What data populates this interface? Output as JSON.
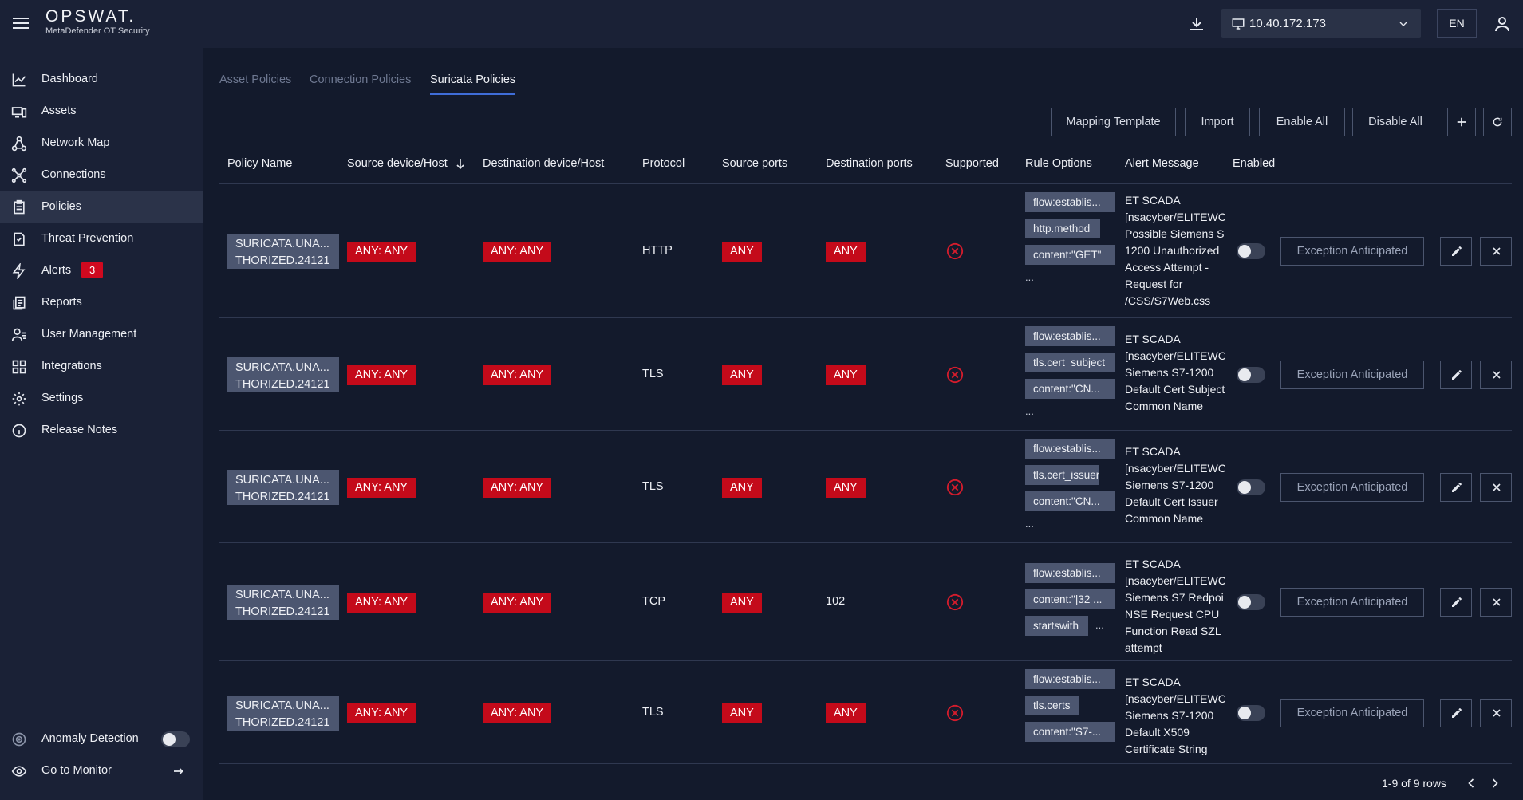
{
  "app": {
    "brand": "OPSWAT.",
    "product": "MetaDefender OT Security",
    "ip_address": "10.40.172.173",
    "language": "EN"
  },
  "sidebar": {
    "items": [
      {
        "label": "Dashboard",
        "icon": "chart-line-icon"
      },
      {
        "label": "Assets",
        "icon": "devices-icon"
      },
      {
        "label": "Network Map",
        "icon": "network-map-icon"
      },
      {
        "label": "Connections",
        "icon": "connections-icon"
      },
      {
        "label": "Policies",
        "icon": "clipboard-icon",
        "active": true
      },
      {
        "label": "Threat Prevention",
        "icon": "document-shield-icon"
      },
      {
        "label": "Alerts",
        "icon": "bolt-icon",
        "badge": "3"
      },
      {
        "label": "Reports",
        "icon": "reports-icon"
      },
      {
        "label": "User Management",
        "icon": "users-icon"
      },
      {
        "label": "Integrations",
        "icon": "grid-icon"
      },
      {
        "label": "Settings",
        "icon": "gear-icon"
      },
      {
        "label": "Release Notes",
        "icon": "info-icon"
      }
    ],
    "anomaly_detection": "Anomaly Detection",
    "go_to_monitor": "Go to Monitor"
  },
  "tabs": [
    "Asset Policies",
    "Connection Policies",
    "Suricata Policies"
  ],
  "actions": {
    "mapping_template": "Mapping Template",
    "import": "Import",
    "enable_all": "Enable All",
    "disable_all": "Disable All"
  },
  "columns": [
    "Policy Name",
    "Source device/Host",
    "Destination device/Host",
    "Protocol",
    "Source ports",
    "Destination ports",
    "Supported",
    "Rule Options",
    "Alert Message",
    "Enabled"
  ],
  "rows": [
    {
      "name": "SURICATA.UNA...\nTHORIZED.24121",
      "source": "ANY: ANY",
      "destination": "ANY: ANY",
      "protocol": "HTTP",
      "source_ports": "ANY",
      "destination_ports": "ANY",
      "options": [
        "flow:establis...",
        "http.method",
        "content:\"GET\""
      ],
      "more": "...",
      "alert": "ET SCADA\n[nsacyber/ELITEWC\nPossible Siemens S\n1200 Unauthorized\nAccess Attempt -\nRequest for\n/CSS/S7Web.css",
      "enabled": false,
      "exception": "Exception Anticipated"
    },
    {
      "name": "SURICATA.UNA...\nTHORIZED.24121",
      "source": "ANY: ANY",
      "destination": "ANY: ANY",
      "protocol": "TLS",
      "source_ports": "ANY",
      "destination_ports": "ANY",
      "options": [
        "flow:establis...",
        "tls.cert_subject",
        "content:\"CN..."
      ],
      "more": "...",
      "alert": "ET SCADA\n[nsacyber/ELITEWC\nSiemens S7-1200\nDefault Cert Subject\nCommon Name",
      "enabled": false,
      "exception": "Exception Anticipated"
    },
    {
      "name": "SURICATA.UNA...\nTHORIZED.24121",
      "source": "ANY: ANY",
      "destination": "ANY: ANY",
      "protocol": "TLS",
      "source_ports": "ANY",
      "destination_ports": "ANY",
      "options": [
        "flow:establis...",
        "tls.cert_issuer",
        "content:\"CN..."
      ],
      "more": "...",
      "alert": "ET SCADA\n[nsacyber/ELITEWC\nSiemens S7-1200\nDefault Cert Issuer\nCommon Name",
      "enabled": false,
      "exception": "Exception Anticipated"
    },
    {
      "name": "SURICATA.UNA...\nTHORIZED.24121",
      "source": "ANY: ANY",
      "destination": "ANY: ANY",
      "protocol": "TCP",
      "source_ports": "ANY",
      "destination_ports": "102",
      "options": [
        "flow:establis...",
        "content:\"|32 ...",
        "startswith"
      ],
      "more": "...",
      "alert": "ET SCADA\n[nsacyber/ELITEWC\nSiemens S7 Redpoi\nNSE Request CPU\nFunction Read SZL\nattempt",
      "enabled": false,
      "exception": "Exception Anticipated"
    },
    {
      "name": "SURICATA.UNA...\nTHORIZED.24121",
      "source": "ANY: ANY",
      "destination": "ANY: ANY",
      "protocol": "TLS",
      "source_ports": "ANY",
      "destination_ports": "ANY",
      "options": [
        "flow:establis...",
        "tls.certs",
        "content:\"S7-..."
      ],
      "more": "",
      "alert": "ET SCADA\n[nsacyber/ELITEWC\nSiemens S7-1200\nDefault X509\nCertificate String",
      "enabled": false,
      "exception": "Exception Anticipated"
    }
  ],
  "pagination": {
    "summary": "1-9 of 9 rows"
  },
  "colors": {
    "background": "#131a2c",
    "panel": "#1a2136",
    "accent": "#3f6dd8",
    "danger": "#c40a1a",
    "tag": "#4c5670"
  }
}
